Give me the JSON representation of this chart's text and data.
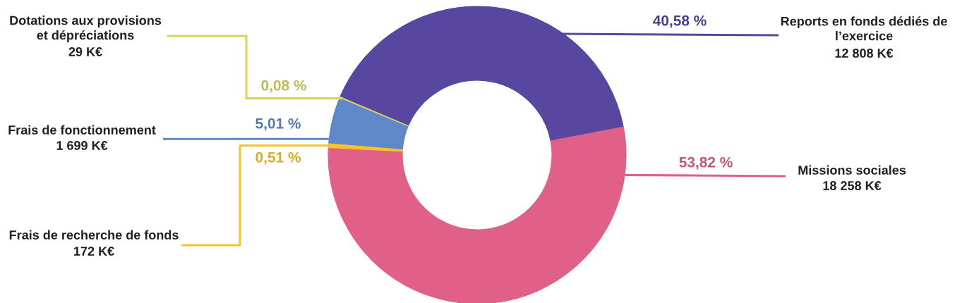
{
  "chart_data": {
    "type": "donut",
    "categories": [
      "Reports en fonds dédiés de\nl’exercice",
      "Missions sociales",
      "Frais de recherche de fonds",
      "Frais de fonctionnement",
      "Dotations aux provisions\net dépréciations"
    ],
    "values": [
      40.58,
      53.82,
      0.51,
      5.01,
      0.08
    ],
    "colors": [
      "#5747a0",
      "#e06088",
      "#f7c325",
      "#5f88c8",
      "#dcd35a"
    ],
    "value_labels": [
      "40,58 %",
      "53,82 %",
      "0,51 %",
      "5,01 %",
      "0,08 %"
    ],
    "annotations": [
      "12 808 K€",
      "18 258 K€",
      "172 K€",
      "1 699 K€",
      "29 K€"
    ]
  }
}
